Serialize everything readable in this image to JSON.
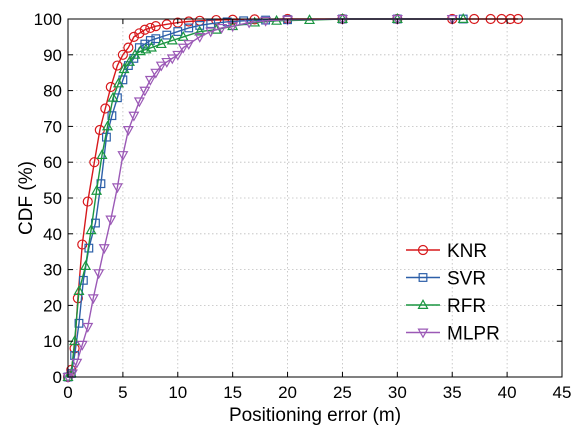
{
  "chart_data": {
    "type": "line",
    "title": "",
    "xlabel": "Positioning error (m)",
    "ylabel": "CDF (%)",
    "xlim": [
      0,
      45
    ],
    "ylim": [
      0,
      100
    ],
    "xticks": [
      0,
      5,
      10,
      15,
      20,
      25,
      30,
      35,
      40,
      45
    ],
    "yticks": [
      0,
      10,
      20,
      30,
      40,
      50,
      60,
      70,
      80,
      90,
      100
    ],
    "grid": true,
    "legend_position": "bottom-right",
    "series": [
      {
        "name": "KNR",
        "color": "#d7191c",
        "marker": "circle",
        "points": [
          [
            0,
            0
          ],
          [
            0.3,
            2
          ],
          [
            0.6,
            8
          ],
          [
            0.9,
            22
          ],
          [
            1.3,
            37
          ],
          [
            1.8,
            49
          ],
          [
            2.4,
            60
          ],
          [
            2.9,
            69
          ],
          [
            3.4,
            75
          ],
          [
            3.9,
            81
          ],
          [
            4.5,
            87
          ],
          [
            5.0,
            90
          ],
          [
            5.5,
            92
          ],
          [
            6.0,
            95
          ],
          [
            6.5,
            96
          ],
          [
            7.0,
            97
          ],
          [
            7.5,
            97.5
          ],
          [
            8.0,
            98
          ],
          [
            9.0,
            98.5
          ],
          [
            10.0,
            99
          ],
          [
            11.0,
            99.3
          ],
          [
            12.0,
            99.5
          ],
          [
            13.5,
            99.7
          ],
          [
            15.0,
            99.8
          ],
          [
            17.0,
            99.9
          ],
          [
            20.0,
            100
          ],
          [
            25.0,
            100
          ],
          [
            30.0,
            100
          ],
          [
            35.0,
            100
          ],
          [
            37.0,
            100
          ],
          [
            38.5,
            100
          ],
          [
            39.5,
            100
          ],
          [
            40.3,
            100
          ],
          [
            41.0,
            100
          ]
        ]
      },
      {
        "name": "SVR",
        "color": "#2c5fa8",
        "marker": "square",
        "points": [
          [
            0,
            0
          ],
          [
            0.3,
            1
          ],
          [
            0.6,
            6
          ],
          [
            1.0,
            15
          ],
          [
            1.4,
            27
          ],
          [
            1.9,
            36
          ],
          [
            2.5,
            43
          ],
          [
            3.0,
            54
          ],
          [
            3.5,
            67
          ],
          [
            4.0,
            73
          ],
          [
            4.5,
            78
          ],
          [
            5.0,
            83
          ],
          [
            5.5,
            87
          ],
          [
            6.0,
            89
          ],
          [
            6.5,
            92
          ],
          [
            7.0,
            93
          ],
          [
            7.5,
            94
          ],
          [
            8.0,
            94.5
          ],
          [
            9.0,
            95.5
          ],
          [
            10.0,
            96.5
          ],
          [
            11.0,
            97.5
          ],
          [
            12.0,
            98.2
          ],
          [
            13.0,
            98.7
          ],
          [
            14.5,
            99.2
          ],
          [
            16.0,
            99.5
          ],
          [
            18.0,
            99.7
          ],
          [
            20.0,
            99.8
          ],
          [
            25.0,
            100
          ],
          [
            30.0,
            100
          ],
          [
            36.0,
            100
          ]
        ]
      },
      {
        "name": "RFR",
        "color": "#1a9641",
        "marker": "triangle-up",
        "points": [
          [
            0,
            0
          ],
          [
            0.3,
            1
          ],
          [
            0.6,
            10
          ],
          [
            1.0,
            24
          ],
          [
            1.6,
            31
          ],
          [
            2.1,
            41
          ],
          [
            2.6,
            52
          ],
          [
            3.1,
            62
          ],
          [
            3.6,
            70
          ],
          [
            4.1,
            78
          ],
          [
            4.6,
            82
          ],
          [
            5.1,
            86
          ],
          [
            5.6,
            88
          ],
          [
            6.1,
            90
          ],
          [
            6.6,
            91
          ],
          [
            7.1,
            91.5
          ],
          [
            7.6,
            92
          ],
          [
            8.5,
            93
          ],
          [
            9.5,
            94
          ],
          [
            10.5,
            95
          ],
          [
            12.0,
            96.5
          ],
          [
            13.5,
            97
          ],
          [
            15.0,
            98
          ],
          [
            17.0,
            99
          ],
          [
            19.0,
            99.5
          ],
          [
            22.0,
            99.7
          ],
          [
            25.0,
            100
          ],
          [
            30.0,
            100
          ],
          [
            36.0,
            100
          ]
        ]
      },
      {
        "name": "MLPR",
        "color": "#9b59b6",
        "marker": "triangle-down",
        "points": [
          [
            0,
            0
          ],
          [
            0.4,
            1
          ],
          [
            0.8,
            4
          ],
          [
            1.3,
            9
          ],
          [
            1.8,
            14
          ],
          [
            2.3,
            22
          ],
          [
            2.8,
            29
          ],
          [
            3.3,
            36
          ],
          [
            3.9,
            44
          ],
          [
            4.5,
            53
          ],
          [
            5.0,
            62
          ],
          [
            5.5,
            69
          ],
          [
            6.0,
            73
          ],
          [
            6.5,
            77
          ],
          [
            7.0,
            80
          ],
          [
            7.5,
            83
          ],
          [
            8.0,
            85
          ],
          [
            8.5,
            87
          ],
          [
            9.0,
            88
          ],
          [
            9.5,
            89
          ],
          [
            10.0,
            90
          ],
          [
            10.5,
            92
          ],
          [
            11.0,
            93
          ],
          [
            12.0,
            95
          ],
          [
            13.0,
            96.5
          ],
          [
            14.0,
            97.5
          ],
          [
            15.0,
            98
          ],
          [
            16.5,
            99
          ],
          [
            18.0,
            99.5
          ],
          [
            20.0,
            99.8
          ],
          [
            25.0,
            100
          ],
          [
            30.0,
            100
          ],
          [
            35.0,
            100
          ]
        ]
      }
    ]
  }
}
